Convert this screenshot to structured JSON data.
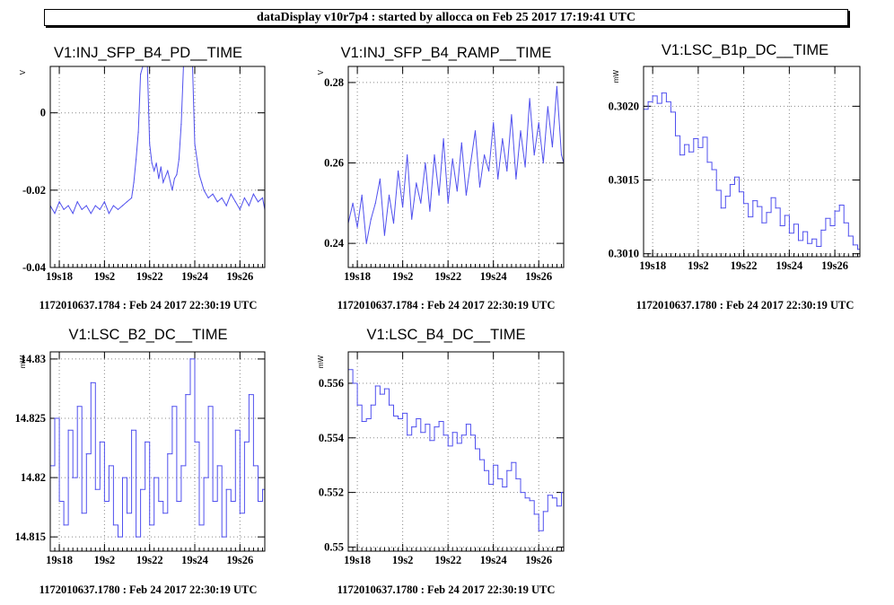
{
  "header": {
    "title": "dataDisplay v10r7p4 : started by allocca on Feb 25 2017 17:19:41 UTC"
  },
  "chart_data": [
    {
      "type": "line",
      "title": "V1:INJ_SFP_B4_PD__TIME",
      "ylabel": "V",
      "footer": "1172010637.1784 : Feb 24 2017 22:30:19 UTC",
      "xlim": [
        17.6,
        27.1
      ],
      "ylim": [
        -0.04,
        0.012
      ],
      "x_ticks": [
        {
          "v": 18,
          "label": "19s18"
        },
        {
          "v": 20,
          "label": "19s2"
        },
        {
          "v": 22,
          "label": "19s22"
        },
        {
          "v": 24,
          "label": "19s24"
        },
        {
          "v": 26,
          "label": "19s26"
        }
      ],
      "y_ticks": [
        {
          "v": 0,
          "label": "0"
        },
        {
          "v": -0.02,
          "label": "-0.02"
        },
        {
          "v": -0.04,
          "label": "-0.04"
        }
      ],
      "series": [
        {
          "color": "#5050ee",
          "x": [
            17.6,
            17.8,
            18.0,
            18.2,
            18.4,
            18.6,
            18.8,
            19.0,
            19.2,
            19.4,
            19.6,
            19.8,
            20.0,
            20.2,
            20.4,
            20.6,
            20.8,
            21.0,
            21.2,
            21.3,
            21.4,
            21.5,
            21.6,
            21.7,
            21.8,
            21.9,
            22.0,
            22.1,
            22.2,
            22.3,
            22.4,
            22.5,
            22.6,
            22.8,
            23.0,
            23.1,
            23.2,
            23.3,
            23.4,
            23.5,
            23.6,
            23.7,
            23.8,
            23.9,
            24.0,
            24.1,
            24.2,
            24.3,
            24.4,
            24.6,
            24.8,
            25.0,
            25.2,
            25.4,
            25.6,
            25.8,
            26.0,
            26.2,
            26.4,
            26.6,
            26.8,
            27.0,
            27.1
          ],
          "values": [
            -0.024,
            -0.026,
            -0.023,
            -0.025,
            -0.024,
            -0.026,
            -0.023,
            -0.025,
            -0.024,
            -0.026,
            -0.024,
            -0.025,
            -0.023,
            -0.026,
            -0.024,
            -0.025,
            -0.024,
            -0.023,
            -0.022,
            -0.018,
            -0.012,
            -0.005,
            0.01,
            0.012,
            0.012,
            0.012,
            -0.008,
            -0.013,
            -0.015,
            -0.013,
            -0.017,
            -0.014,
            -0.018,
            -0.015,
            -0.02,
            -0.017,
            -0.016,
            -0.012,
            -0.003,
            0.012,
            0.012,
            0.012,
            0.012,
            0.012,
            -0.008,
            -0.012,
            -0.016,
            -0.018,
            -0.02,
            -0.022,
            -0.021,
            -0.023,
            -0.022,
            -0.024,
            -0.021,
            -0.023,
            -0.025,
            -0.022,
            -0.024,
            -0.021,
            -0.023,
            -0.022,
            -0.025
          ]
        }
      ]
    },
    {
      "type": "line",
      "title": "V1:INJ_SFP_B4_RAMP__TIME",
      "ylabel": "V",
      "footer": "1172010637.1784 : Feb 24 2017 22:30:19 UTC",
      "xlim": [
        17.6,
        27.1
      ],
      "ylim": [
        0.234,
        0.284
      ],
      "x_ticks": [
        {
          "v": 18,
          "label": "19s18"
        },
        {
          "v": 20,
          "label": "19s2"
        },
        {
          "v": 22,
          "label": "19s22"
        },
        {
          "v": 24,
          "label": "19s24"
        },
        {
          "v": 26,
          "label": "19s26"
        }
      ],
      "y_ticks": [
        {
          "v": 0.24,
          "label": "0.24"
        },
        {
          "v": 0.26,
          "label": "0.26"
        },
        {
          "v": 0.28,
          "label": "0.28"
        }
      ],
      "series": [
        {
          "color": "#5050ee",
          "x": [
            17.6,
            17.8,
            18.0,
            18.2,
            18.4,
            18.6,
            18.8,
            19.0,
            19.2,
            19.4,
            19.6,
            19.8,
            20.0,
            20.2,
            20.4,
            20.6,
            20.8,
            21.0,
            21.2,
            21.4,
            21.6,
            21.8,
            22.0,
            22.2,
            22.4,
            22.6,
            22.8,
            23.0,
            23.2,
            23.4,
            23.6,
            23.8,
            24.0,
            24.2,
            24.4,
            24.6,
            24.8,
            25.0,
            25.2,
            25.4,
            25.6,
            25.8,
            26.0,
            26.2,
            26.4,
            26.6,
            26.8,
            27.0,
            27.1
          ],
          "values": [
            0.245,
            0.25,
            0.244,
            0.252,
            0.24,
            0.246,
            0.25,
            0.256,
            0.242,
            0.252,
            0.245,
            0.258,
            0.249,
            0.262,
            0.246,
            0.255,
            0.25,
            0.26,
            0.248,
            0.262,
            0.252,
            0.266,
            0.25,
            0.261,
            0.253,
            0.265,
            0.252,
            0.26,
            0.268,
            0.254,
            0.262,
            0.258,
            0.27,
            0.256,
            0.266,
            0.258,
            0.272,
            0.256,
            0.268,
            0.259,
            0.276,
            0.262,
            0.27,
            0.26,
            0.274,
            0.264,
            0.279,
            0.262,
            0.26
          ]
        }
      ]
    },
    {
      "type": "line",
      "title": "V1:LSC_B1p_DC__TIME",
      "ylabel": "mW",
      "footer": "1172010637.1780 : Feb 24 2017 22:30:19 UTC",
      "xlim": [
        17.6,
        27.1
      ],
      "ylim": [
        0.30098,
        0.30227
      ],
      "x_ticks": [
        {
          "v": 18,
          "label": "19s18"
        },
        {
          "v": 20,
          "label": "19s2"
        },
        {
          "v": 22,
          "label": "19s22"
        },
        {
          "v": 24,
          "label": "19s24"
        },
        {
          "v": 26,
          "label": "19s26"
        }
      ],
      "y_ticks": [
        {
          "v": 0.301,
          "label": "0.3010"
        },
        {
          "v": 0.3015,
          "label": "0.3015"
        },
        {
          "v": 0.302,
          "label": "0.3020"
        }
      ],
      "series": [
        {
          "color": "#5050ee",
          "step": true,
          "x": [
            17.6,
            17.8,
            18.0,
            18.2,
            18.4,
            18.6,
            18.8,
            19.0,
            19.2,
            19.4,
            19.6,
            19.8,
            20.0,
            20.2,
            20.4,
            20.6,
            20.8,
            21.0,
            21.2,
            21.4,
            21.6,
            21.8,
            22.0,
            22.2,
            22.4,
            22.6,
            22.8,
            23.0,
            23.2,
            23.4,
            23.6,
            23.8,
            24.0,
            24.2,
            24.4,
            24.6,
            24.8,
            25.0,
            25.2,
            25.4,
            25.6,
            25.8,
            26.0,
            26.2,
            26.4,
            26.6,
            26.8,
            27.0
          ],
          "values": [
            0.30198,
            0.30203,
            0.30207,
            0.30202,
            0.30209,
            0.30203,
            0.30196,
            0.3018,
            0.30167,
            0.30174,
            0.30169,
            0.30178,
            0.30172,
            0.30179,
            0.30162,
            0.30157,
            0.30143,
            0.30131,
            0.30139,
            0.30147,
            0.30152,
            0.30142,
            0.30134,
            0.30125,
            0.30136,
            0.30132,
            0.30121,
            0.30128,
            0.30138,
            0.30131,
            0.30119,
            0.30126,
            0.30114,
            0.3012,
            0.30109,
            0.30115,
            0.30107,
            0.3011,
            0.30105,
            0.30116,
            0.30124,
            0.30119,
            0.30129,
            0.30133,
            0.30121,
            0.30112,
            0.30106,
            0.30103
          ]
        }
      ]
    },
    {
      "type": "line",
      "title": "V1:LSC_B2_DC__TIME",
      "ylabel": "mW",
      "footer": "1172010637.1780 : Feb 24 2017 22:30:19 UTC",
      "xlim": [
        17.6,
        27.1
      ],
      "ylim": [
        14.8138,
        14.8306
      ],
      "x_ticks": [
        {
          "v": 18,
          "label": "19s18"
        },
        {
          "v": 20,
          "label": "19s2"
        },
        {
          "v": 22,
          "label": "19s22"
        },
        {
          "v": 24,
          "label": "19s24"
        },
        {
          "v": 26,
          "label": "19s26"
        }
      ],
      "y_ticks": [
        {
          "v": 14.815,
          "label": "14.815"
        },
        {
          "v": 14.82,
          "label": "14.82"
        },
        {
          "v": 14.825,
          "label": "14.825"
        },
        {
          "v": 14.83,
          "label": "14.83"
        }
      ],
      "series": [
        {
          "color": "#5050ee",
          "step": true,
          "x": [
            17.6,
            17.8,
            18.0,
            18.2,
            18.4,
            18.6,
            18.8,
            19.0,
            19.2,
            19.4,
            19.6,
            19.8,
            20.0,
            20.2,
            20.4,
            20.6,
            20.8,
            21.0,
            21.2,
            21.4,
            21.6,
            21.8,
            22.0,
            22.2,
            22.4,
            22.6,
            22.8,
            23.0,
            23.2,
            23.4,
            23.6,
            23.8,
            24.0,
            24.2,
            24.4,
            24.6,
            24.8,
            25.0,
            25.2,
            25.4,
            25.6,
            25.8,
            26.0,
            26.2,
            26.4,
            26.6,
            26.8,
            27.0
          ],
          "values": [
            14.821,
            14.825,
            14.818,
            14.816,
            14.824,
            14.82,
            14.826,
            14.817,
            14.822,
            14.828,
            14.819,
            14.823,
            14.818,
            14.821,
            14.816,
            14.815,
            14.82,
            14.817,
            14.824,
            14.815,
            14.819,
            14.823,
            14.816,
            14.82,
            14.818,
            14.817,
            14.822,
            14.826,
            14.818,
            14.821,
            14.827,
            14.83,
            14.823,
            14.816,
            14.82,
            14.826,
            14.818,
            14.821,
            14.815,
            14.819,
            14.818,
            14.824,
            14.817,
            14.823,
            14.827,
            14.821,
            14.818,
            14.819
          ]
        }
      ]
    },
    {
      "type": "line",
      "title": "V1:LSC_B4_DC__TIME",
      "ylabel": "mW",
      "footer": "1172010637.1780 : Feb 24 2017 22:30:19 UTC",
      "xlim": [
        17.6,
        27.1
      ],
      "ylim": [
        0.54985,
        0.55715
      ],
      "x_ticks": [
        {
          "v": 18,
          "label": "19s18"
        },
        {
          "v": 20,
          "label": "19s2"
        },
        {
          "v": 22,
          "label": "19s22"
        },
        {
          "v": 24,
          "label": "19s24"
        },
        {
          "v": 26,
          "label": "19s26"
        }
      ],
      "y_ticks": [
        {
          "v": 0.55,
          "label": "0.55"
        },
        {
          "v": 0.552,
          "label": "0.552"
        },
        {
          "v": 0.554,
          "label": "0.554"
        },
        {
          "v": 0.556,
          "label": "0.556"
        }
      ],
      "series": [
        {
          "color": "#5050ee",
          "step": true,
          "x": [
            17.6,
            17.8,
            18.0,
            18.2,
            18.4,
            18.6,
            18.8,
            19.0,
            19.2,
            19.4,
            19.6,
            19.8,
            20.0,
            20.2,
            20.4,
            20.6,
            20.8,
            21.0,
            21.2,
            21.4,
            21.6,
            21.8,
            22.0,
            22.2,
            22.4,
            22.6,
            22.8,
            23.0,
            23.2,
            23.4,
            23.6,
            23.8,
            24.0,
            24.2,
            24.4,
            24.6,
            24.8,
            25.0,
            25.2,
            25.4,
            25.6,
            25.8,
            26.0,
            26.2,
            26.4,
            26.6,
            26.8,
            27.0
          ],
          "values": [
            0.5565,
            0.556,
            0.5552,
            0.5546,
            0.5547,
            0.5552,
            0.5559,
            0.5556,
            0.5558,
            0.5552,
            0.5548,
            0.5547,
            0.5549,
            0.5541,
            0.5544,
            0.5547,
            0.5542,
            0.5545,
            0.5539,
            0.5544,
            0.5546,
            0.5541,
            0.5537,
            0.5542,
            0.5538,
            0.5541,
            0.5545,
            0.5541,
            0.5536,
            0.5532,
            0.5528,
            0.5523,
            0.553,
            0.5525,
            0.5522,
            0.5528,
            0.5531,
            0.5525,
            0.552,
            0.5518,
            0.5517,
            0.5512,
            0.5506,
            0.5513,
            0.5519,
            0.5518,
            0.5515,
            0.552
          ]
        }
      ]
    }
  ]
}
